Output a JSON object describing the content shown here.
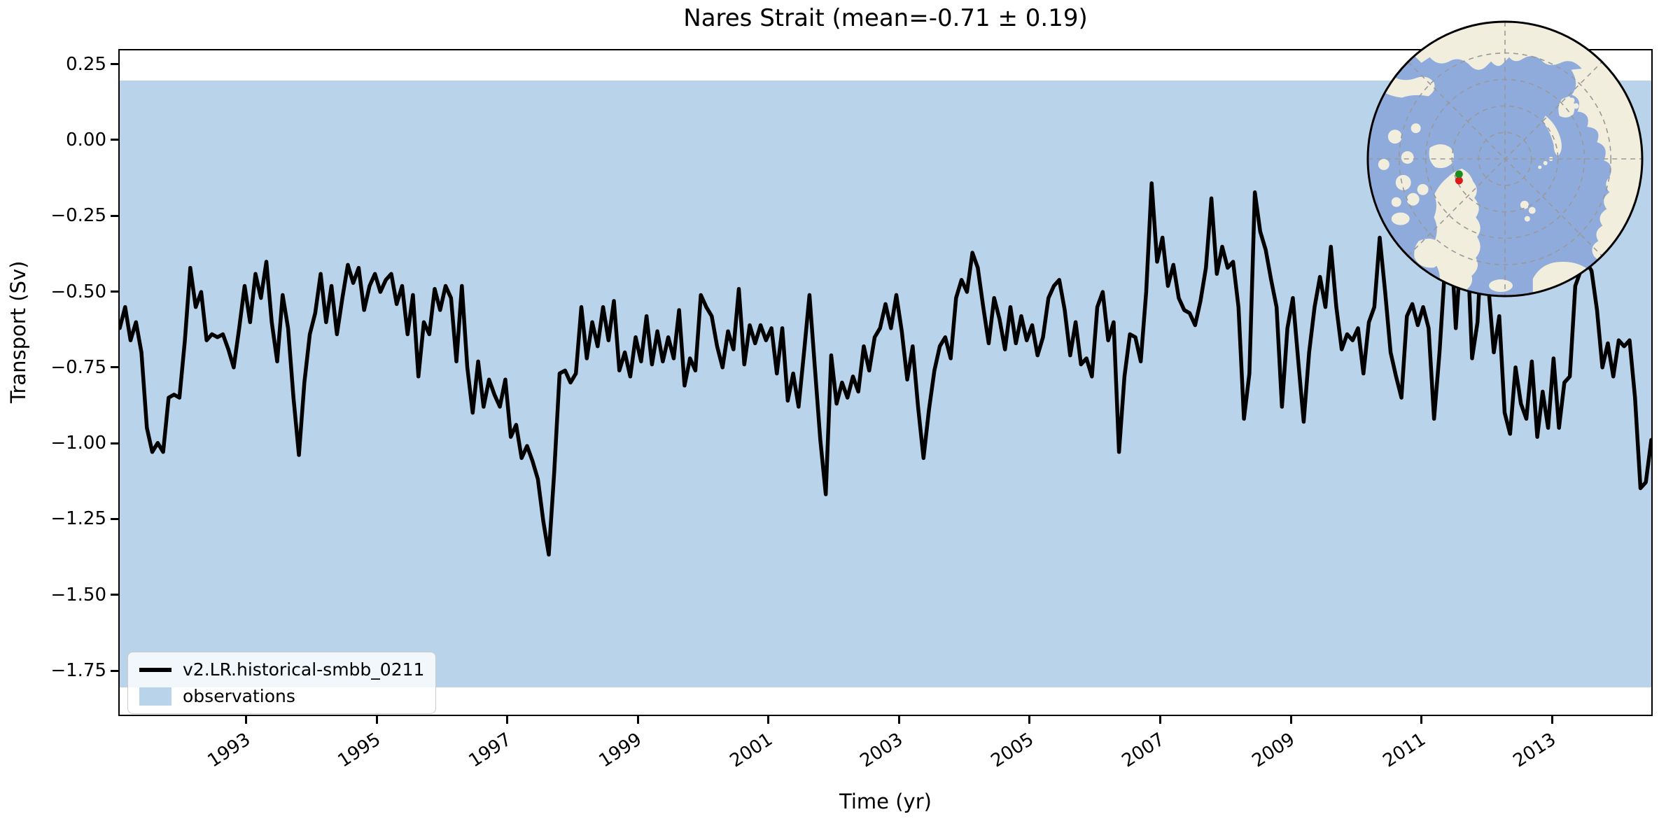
{
  "title": "Nares Strait (mean=-0.71 ± 0.19)",
  "axes": {
    "xlabel": "Time (yr)",
    "ylabel": "Transport (Sv)"
  },
  "legend": {
    "items": [
      {
        "label": "v2.LR.historical-smbb_0211",
        "swatch": "line"
      },
      {
        "label": "observations",
        "swatch": "patch"
      }
    ]
  },
  "colors": {
    "line": "#000000",
    "band": "#b9d4ea",
    "spine": "#000000",
    "map_ocean": "#8fabdc",
    "map_land": "#f1eedd",
    "map_grid": "#999999",
    "marker_green": "#1e8c1e",
    "marker_red": "#e01818",
    "legend_border": "#cccccc"
  },
  "inset_map": {
    "description": "North polar stereographic locator globe with green and red markers at Nares Strait (between Ellesmere Island and northwest Greenland)"
  },
  "chart_data": {
    "type": "line",
    "title": "Nares Strait (mean=-0.71 ± 0.19)",
    "xlabel": "Time (yr)",
    "ylabel": "Transport (Sv)",
    "xlim": [
      1991.042,
      2014.542
    ],
    "ylim": [
      -1.9,
      0.3
    ],
    "grid": false,
    "legend_position": "lower left",
    "stats": {
      "mean": -0.71,
      "std": 0.19
    },
    "xticks": {
      "values": [
        1993,
        1995,
        1997,
        1999,
        2001,
        2003,
        2005,
        2007,
        2009,
        2011,
        2013
      ],
      "labels": [
        "1993",
        "1995",
        "1997",
        "1999",
        "2001",
        "2003",
        "2005",
        "2007",
        "2009",
        "2011",
        "2013"
      ]
    },
    "yticks": {
      "values": [
        0.25,
        0.0,
        -0.25,
        -0.5,
        -0.75,
        -1.0,
        -1.25,
        -1.5,
        -1.75
      ],
      "labels": [
        "0.25",
        "0.00",
        "−0.25",
        "−0.50",
        "−0.75",
        "−1.00",
        "−1.25",
        "−1.50",
        "−1.75"
      ]
    },
    "observations_band": {
      "label": "observations",
      "low": -1.8,
      "high": 0.2,
      "center": -0.8,
      "spread": 1.0
    },
    "series": [
      {
        "name": "v2.LR.historical-smbb_0211",
        "cadence": "monthly",
        "x_start": 1991.042,
        "x_step": 0.0833333,
        "y": [
          -0.62,
          -0.55,
          -0.66,
          -0.6,
          -0.7,
          -0.95,
          -1.03,
          -1.0,
          -1.03,
          -0.85,
          -0.84,
          -0.85,
          -0.66,
          -0.42,
          -0.55,
          -0.5,
          -0.66,
          -0.64,
          -0.65,
          -0.64,
          -0.69,
          -0.75,
          -0.62,
          -0.48,
          -0.6,
          -0.44,
          -0.52,
          -0.4,
          -0.6,
          -0.73,
          -0.51,
          -0.62,
          -0.85,
          -1.04,
          -0.8,
          -0.64,
          -0.57,
          -0.44,
          -0.6,
          -0.48,
          -0.64,
          -0.52,
          -0.41,
          -0.47,
          -0.42,
          -0.56,
          -0.48,
          -0.44,
          -0.5,
          -0.46,
          -0.44,
          -0.54,
          -0.48,
          -0.64,
          -0.51,
          -0.78,
          -0.6,
          -0.64,
          -0.49,
          -0.56,
          -0.48,
          -0.52,
          -0.73,
          -0.48,
          -0.75,
          -0.9,
          -0.73,
          -0.88,
          -0.79,
          -0.84,
          -0.88,
          -0.79,
          -0.98,
          -0.94,
          -1.05,
          -1.01,
          -1.06,
          -1.12,
          -1.26,
          -1.37,
          -1.1,
          -0.77,
          -0.76,
          -0.8,
          -0.77,
          -0.55,
          -0.72,
          -0.6,
          -0.68,
          -0.55,
          -0.66,
          -0.53,
          -0.76,
          -0.7,
          -0.78,
          -0.65,
          -0.73,
          -0.58,
          -0.74,
          -0.63,
          -0.73,
          -0.65,
          -0.72,
          -0.56,
          -0.81,
          -0.72,
          -0.76,
          -0.51,
          -0.55,
          -0.58,
          -0.68,
          -0.75,
          -0.63,
          -0.69,
          -0.49,
          -0.74,
          -0.61,
          -0.67,
          -0.61,
          -0.66,
          -0.62,
          -0.77,
          -0.62,
          -0.86,
          -0.77,
          -0.88,
          -0.7,
          -0.51,
          -0.75,
          -0.99,
          -1.17,
          -0.71,
          -0.87,
          -0.8,
          -0.85,
          -0.78,
          -0.83,
          -0.68,
          -0.76,
          -0.65,
          -0.62,
          -0.54,
          -0.62,
          -0.51,
          -0.63,
          -0.79,
          -0.68,
          -0.88,
          -1.05,
          -0.89,
          -0.76,
          -0.68,
          -0.65,
          -0.72,
          -0.52,
          -0.46,
          -0.5,
          -0.37,
          -0.42,
          -0.55,
          -0.67,
          -0.52,
          -0.59,
          -0.69,
          -0.55,
          -0.67,
          -0.58,
          -0.66,
          -0.61,
          -0.71,
          -0.65,
          -0.52,
          -0.48,
          -0.46,
          -0.56,
          -0.71,
          -0.6,
          -0.74,
          -0.72,
          -0.78,
          -0.55,
          -0.5,
          -0.66,
          -0.6,
          -1.03,
          -0.78,
          -0.64,
          -0.65,
          -0.73,
          -0.5,
          -0.14,
          -0.4,
          -0.32,
          -0.48,
          -0.41,
          -0.52,
          -0.56,
          -0.57,
          -0.61,
          -0.53,
          -0.42,
          -0.19,
          -0.44,
          -0.35,
          -0.42,
          -0.4,
          -0.55,
          -0.92,
          -0.77,
          -0.17,
          -0.3,
          -0.36,
          -0.46,
          -0.55,
          -0.88,
          -0.62,
          -0.52,
          -0.73,
          -0.93,
          -0.7,
          -0.55,
          -0.45,
          -0.55,
          -0.35,
          -0.55,
          -0.69,
          -0.64,
          -0.66,
          -0.62,
          -0.77,
          -0.6,
          -0.55,
          -0.32,
          -0.5,
          -0.7,
          -0.78,
          -0.85,
          -0.58,
          -0.54,
          -0.61,
          -0.55,
          -0.62,
          -0.92,
          -0.7,
          -0.42,
          -0.28,
          -0.62,
          -0.35,
          -0.28,
          -0.72,
          -0.6,
          -0.25,
          -0.48,
          -0.7,
          -0.58,
          -0.9,
          -0.97,
          -0.75,
          -0.87,
          -0.92,
          -0.73,
          -0.98,
          -0.83,
          -0.95,
          -0.72,
          -0.95,
          -0.8,
          -0.78,
          -0.48,
          -0.43,
          -0.4,
          -0.43,
          -0.56,
          -0.75,
          -0.67,
          -0.78,
          -0.66,
          -0.68,
          -0.66,
          -0.85,
          -1.15,
          -1.13,
          -0.99
        ]
      }
    ]
  }
}
